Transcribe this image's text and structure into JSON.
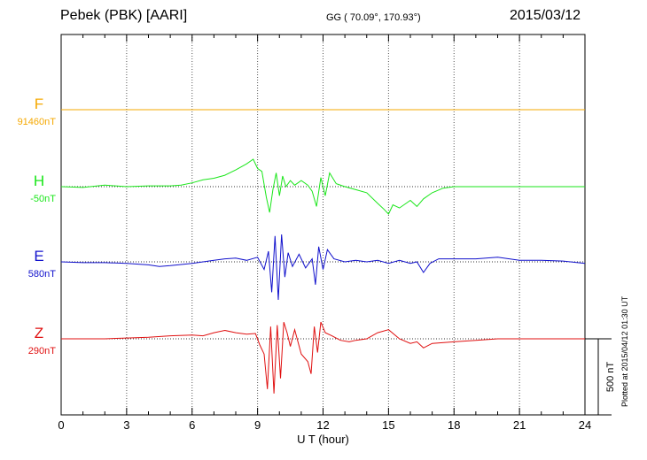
{
  "header": {
    "station": "Pebek (PBK)  [AARI]",
    "coords": "GG ( 70.09°, 170.93°)",
    "date": "2015/03/12"
  },
  "side_note": "Plotted at 2015/04/12 01:30 UT",
  "colors": {
    "F": "#f5a800",
    "H": "#19e619",
    "E": "#1010cc",
    "Z": "#e01010",
    "axis": "#000000"
  },
  "chart_data": {
    "type": "line",
    "xlabel": "U T (hour)",
    "xlim": [
      0,
      24
    ],
    "x_ticks": [
      "0",
      "3",
      "6",
      "9",
      "12",
      "15",
      "18",
      "21",
      "24"
    ],
    "scale_bar_label": "500 nT",
    "series": [
      {
        "name": "F",
        "baseline_label": "91460nT",
        "x": [
          0,
          24
        ],
        "y": [
          0,
          0
        ]
      },
      {
        "name": "H",
        "baseline_label": "-50nT",
        "x": [
          0,
          1,
          2,
          3,
          4,
          5,
          5.5,
          6,
          6.5,
          7,
          7.5,
          8,
          8.5,
          8.8,
          9,
          9.2,
          9.4,
          9.55,
          9.7,
          9.85,
          10,
          10.15,
          10.3,
          10.5,
          10.7,
          11,
          11.3,
          11.5,
          11.7,
          11.9,
          12.1,
          12.3,
          12.6,
          13,
          13.5,
          14,
          14.5,
          14.8,
          15,
          15.2,
          15.5,
          16,
          16.3,
          16.6,
          17,
          17.5,
          18,
          19,
          20,
          21,
          22,
          23,
          24
        ],
        "y": [
          0,
          -5,
          10,
          0,
          5,
          5,
          10,
          25,
          45,
          55,
          75,
          110,
          150,
          180,
          120,
          100,
          -70,
          -170,
          -20,
          90,
          -60,
          70,
          0,
          40,
          10,
          40,
          10,
          -30,
          -130,
          60,
          -60,
          90,
          20,
          0,
          -20,
          -40,
          -110,
          -150,
          -180,
          -120,
          -140,
          -90,
          -130,
          -80,
          -40,
          -10,
          0,
          0,
          0,
          0,
          0,
          0,
          0
        ]
      },
      {
        "name": "E",
        "baseline_label": "580nT",
        "x": [
          0,
          1,
          2,
          3,
          4,
          4.5,
          5,
          6,
          7,
          7.5,
          8,
          8.5,
          9,
          9.3,
          9.5,
          9.65,
          9.8,
          9.95,
          10.1,
          10.25,
          10.4,
          10.6,
          10.9,
          11.2,
          11.5,
          11.65,
          11.8,
          12,
          12.2,
          12.5,
          13,
          13.5,
          14,
          14.5,
          15,
          15.5,
          16,
          16.3,
          16.6,
          16.9,
          17.3,
          18,
          19,
          20,
          21,
          22,
          23,
          24
        ],
        "y": [
          0,
          -5,
          -5,
          -10,
          -20,
          -30,
          -25,
          -10,
          10,
          20,
          25,
          10,
          30,
          -50,
          70,
          -200,
          170,
          -250,
          180,
          -100,
          60,
          -30,
          50,
          -40,
          20,
          -150,
          100,
          -50,
          80,
          20,
          0,
          10,
          0,
          10,
          -10,
          10,
          -10,
          0,
          -70,
          -10,
          20,
          20,
          20,
          30,
          10,
          10,
          5,
          -10
        ]
      },
      {
        "name": "Z",
        "baseline_label": "290nT",
        "x": [
          0,
          1,
          2,
          3,
          4,
          5,
          6,
          6.5,
          7,
          7.5,
          8,
          8.5,
          8.9,
          9.1,
          9.3,
          9.45,
          9.6,
          9.75,
          9.9,
          10.05,
          10.2,
          10.35,
          10.5,
          10.7,
          11,
          11.3,
          11.45,
          11.6,
          11.75,
          11.9,
          12.1,
          12.4,
          12.8,
          13.2,
          13.5,
          14,
          14.5,
          15,
          15.5,
          16,
          16.3,
          16.6,
          17,
          18,
          19,
          20,
          21,
          22,
          23,
          24
        ],
        "y": [
          0,
          0,
          0,
          5,
          10,
          20,
          25,
          20,
          40,
          55,
          40,
          30,
          35,
          -40,
          -100,
          -330,
          80,
          -360,
          90,
          -260,
          110,
          40,
          -50,
          60,
          -100,
          -150,
          -230,
          80,
          -90,
          110,
          40,
          20,
          -10,
          -20,
          -10,
          0,
          40,
          60,
          0,
          -30,
          -20,
          -60,
          -30,
          -20,
          -10,
          0,
          0,
          0,
          0,
          0
        ]
      }
    ]
  }
}
